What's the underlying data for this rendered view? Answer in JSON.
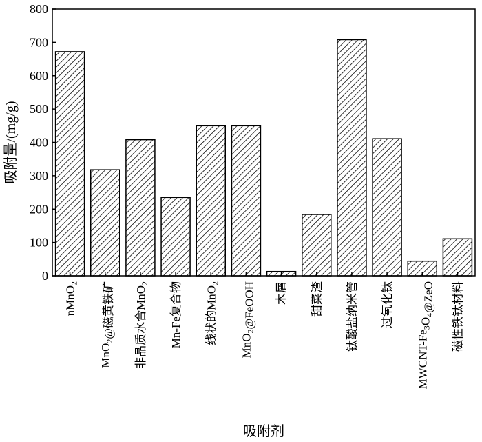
{
  "chart_data": {
    "type": "bar",
    "xlabel": "吸附剂",
    "ylabel": "吸附量/(mg/g)",
    "ylim": [
      0,
      800
    ],
    "yticks": [
      0,
      100,
      200,
      300,
      400,
      500,
      600,
      700,
      800
    ],
    "grid": false,
    "legend": "none",
    "bar_fill": "hatched diagonal",
    "categories": [
      [
        {
          "t": "nMnO"
        },
        {
          "t": "2",
          "s": 1
        }
      ],
      [
        {
          "t": "MnO"
        },
        {
          "t": "2",
          "s": 1
        },
        {
          "t": "@磁黄铁矿"
        }
      ],
      [
        {
          "t": "非晶质水合MnO"
        },
        {
          "t": "2",
          "s": 1
        }
      ],
      [
        {
          "t": "Mn-Fe复合物"
        }
      ],
      [
        {
          "t": "线状的MnO"
        },
        {
          "t": "2",
          "s": 1
        }
      ],
      [
        {
          "t": "MnO"
        },
        {
          "t": "2",
          "s": 1
        },
        {
          "t": "@FeOOH"
        }
      ],
      [
        {
          "t": "木屑"
        }
      ],
      [
        {
          "t": "甜菜渣"
        }
      ],
      [
        {
          "t": "钛酸盐纳米管"
        }
      ],
      [
        {
          "t": "过氧化钛"
        }
      ],
      [
        {
          "t": "MWCNT-Fe"
        },
        {
          "t": "3",
          "s": 1
        },
        {
          "t": "O"
        },
        {
          "t": "4",
          "s": 1
        },
        {
          "t": "@ZeO"
        }
      ],
      [
        {
          "t": "磁性铁钛材料"
        }
      ]
    ],
    "values": [
      672,
      318,
      408,
      235,
      450,
      450,
      13,
      184,
      708,
      411,
      44,
      111
    ]
  }
}
